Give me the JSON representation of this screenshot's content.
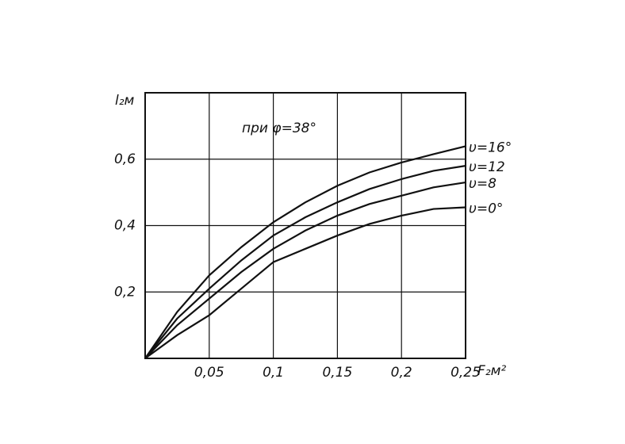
{
  "chart_data": {
    "type": "line",
    "annotation": "при φ=38°",
    "y_label": "l₂м",
    "x_label": "F₂м²",
    "x": [
      0,
      0.025,
      0.05,
      0.075,
      0.1,
      0.125,
      0.15,
      0.175,
      0.2,
      0.225,
      0.25
    ],
    "series": [
      {
        "name": "υ=16°",
        "color": "#111111",
        "values": [
          0,
          0.14,
          0.25,
          0.335,
          0.41,
          0.47,
          0.52,
          0.56,
          0.59,
          0.615,
          0.639
        ]
      },
      {
        "name": "υ=12",
        "color": "#111111",
        "values": [
          0,
          0.12,
          0.21,
          0.295,
          0.37,
          0.425,
          0.47,
          0.51,
          0.54,
          0.565,
          0.58
        ]
      },
      {
        "name": "υ=8",
        "color": "#111111",
        "values": [
          0,
          0.1,
          0.18,
          0.26,
          0.33,
          0.385,
          0.43,
          0.465,
          0.49,
          0.515,
          0.53
        ]
      },
      {
        "name": "υ=0°",
        "color": "#111111",
        "values": [
          0,
          0.07,
          0.13,
          0.21,
          0.29,
          0.33,
          0.37,
          0.405,
          0.43,
          0.45,
          0.455
        ]
      }
    ],
    "xlim": [
      0,
      0.25
    ],
    "ylim": [
      0,
      0.8
    ],
    "xticks": [
      {
        "value": 0.05,
        "label": "0,05"
      },
      {
        "value": 0.1,
        "label": "0,1"
      },
      {
        "value": 0.15,
        "label": "0,15"
      },
      {
        "value": 0.2,
        "label": "0,2"
      },
      {
        "value": 0.25,
        "label": "0,25"
      }
    ],
    "yticks": [
      {
        "value": 0.2,
        "label": "0,2"
      },
      {
        "value": 0.4,
        "label": "0,4"
      },
      {
        "value": 0.6,
        "label": "0,6"
      }
    ],
    "grid": true
  }
}
